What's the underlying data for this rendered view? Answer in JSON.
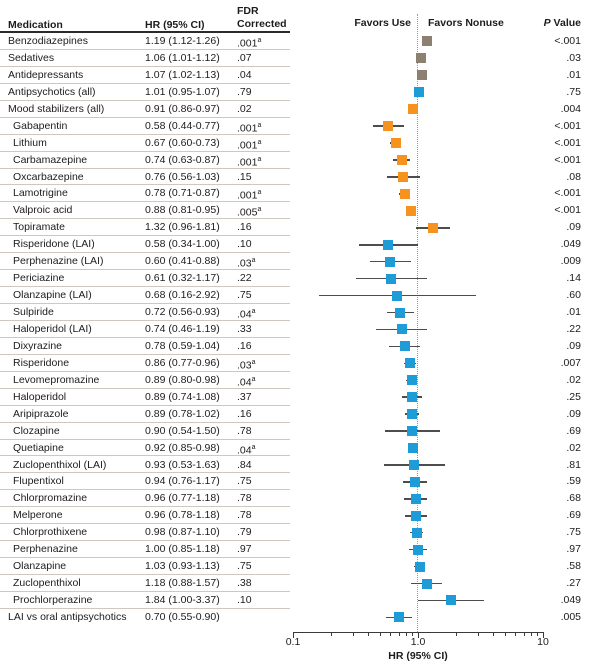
{
  "colors": {
    "brown": "#8E8070",
    "orange": "#F6921E",
    "blue": "#1E9CD8",
    "whisker": "#4D4D4D",
    "row_separator": "#CFC8C0",
    "header_rule": "#2B2B2B",
    "reference_line": "#9A9A9A"
  },
  "chart_data": {
    "type": "forest",
    "x_scale": "log",
    "xlim": [
      0.1,
      10
    ],
    "reference_line": 1.0,
    "xlabel": "HR (95% CI)",
    "favors_left": "Favors Use",
    "favors_right": "Favors Nonuse",
    "columns": {
      "medication": "Medication",
      "hr": "HR (95% CI)",
      "fdr_line1": "FDR",
      "fdr_line2": "Corrected",
      "p_italic": "P",
      "p_rest": " Value"
    },
    "x_ticks": [
      {
        "v": 0.1,
        "label": "0.1"
      },
      {
        "v": 1.0,
        "label": "1.0"
      },
      {
        "v": 10,
        "label": "10"
      }
    ],
    "x_minor_ticks": [
      0.2,
      0.3,
      0.4,
      0.5,
      0.6,
      0.7,
      0.8,
      0.9,
      2,
      3,
      4,
      5,
      6,
      7,
      8,
      9
    ],
    "rows": [
      {
        "label": "Benzodiazepines",
        "hr": 1.19,
        "lo": 1.12,
        "hi": 1.26,
        "hr_text": "1.19 (1.12-1.26)",
        "fdr": ".001",
        "fdr_sup": "a",
        "p": "<.001",
        "group": "brown",
        "indent": false
      },
      {
        "label": "Sedatives",
        "hr": 1.06,
        "lo": 1.01,
        "hi": 1.12,
        "hr_text": "1.06 (1.01-1.12)",
        "fdr": ".07",
        "fdr_sup": "",
        "p": ".03",
        "group": "brown",
        "indent": false
      },
      {
        "label": "Antidepressants",
        "hr": 1.07,
        "lo": 1.02,
        "hi": 1.13,
        "hr_text": "1.07 (1.02-1.13)",
        "fdr": ".04",
        "fdr_sup": "",
        "p": ".01",
        "group": "brown",
        "indent": false
      },
      {
        "label": "Antipsychotics (all)",
        "hr": 1.01,
        "lo": 0.95,
        "hi": 1.07,
        "hr_text": "1.01 (0.95-1.07)",
        "fdr": ".79",
        "fdr_sup": "",
        "p": ".75",
        "group": "blue",
        "indent": false
      },
      {
        "label": "Mood stabilizers (all)",
        "hr": 0.91,
        "lo": 0.86,
        "hi": 0.97,
        "hr_text": "0.91 (0.86-0.97)",
        "fdr": ".02",
        "fdr_sup": "",
        "p": ".004",
        "group": "orange",
        "indent": false
      },
      {
        "label": "Gabapentin",
        "hr": 0.58,
        "lo": 0.44,
        "hi": 0.77,
        "hr_text": "0.58 (0.44-0.77)",
        "fdr": ".001",
        "fdr_sup": "a",
        "p": "<.001",
        "group": "orange",
        "indent": true
      },
      {
        "label": "Lithium",
        "hr": 0.67,
        "lo": 0.6,
        "hi": 0.73,
        "hr_text": "0.67 (0.60-0.73)",
        "fdr": ".001",
        "fdr_sup": "a",
        "p": "<.001",
        "group": "orange",
        "indent": true
      },
      {
        "label": "Carbamazepine",
        "hr": 0.74,
        "lo": 0.63,
        "hi": 0.87,
        "hr_text": "0.74 (0.63-0.87)",
        "fdr": ".001",
        "fdr_sup": "a",
        "p": "<.001",
        "group": "orange",
        "indent": true
      },
      {
        "label": "Oxcarbazepine",
        "hr": 0.76,
        "lo": 0.56,
        "hi": 1.03,
        "hr_text": "0.76 (0.56-1.03)",
        "fdr": ".15",
        "fdr_sup": "",
        "p": ".08",
        "group": "orange",
        "indent": true
      },
      {
        "label": "Lamotrigine",
        "hr": 0.78,
        "lo": 0.71,
        "hi": 0.87,
        "hr_text": "0.78 (0.71-0.87)",
        "fdr": ".001",
        "fdr_sup": "a",
        "p": "<.001",
        "group": "orange",
        "indent": true
      },
      {
        "label": "Valproic acid",
        "hr": 0.88,
        "lo": 0.81,
        "hi": 0.95,
        "hr_text": "0.88 (0.81-0.95)",
        "fdr": ".005",
        "fdr_sup": "a",
        "p": "<.001",
        "group": "orange",
        "indent": true
      },
      {
        "label": "Topiramate",
        "hr": 1.32,
        "lo": 0.96,
        "hi": 1.81,
        "hr_text": "1.32 (0.96-1.81)",
        "fdr": ".16",
        "fdr_sup": "",
        "p": ".09",
        "group": "orange",
        "indent": true
      },
      {
        "label": "Risperidone (LAI)",
        "hr": 0.58,
        "lo": 0.34,
        "hi": 1.0,
        "hr_text": "0.58 (0.34-1.00)",
        "fdr": ".10",
        "fdr_sup": "",
        "p": ".049",
        "group": "blue",
        "indent": true
      },
      {
        "label": "Perphenazine (LAI)",
        "hr": 0.6,
        "lo": 0.41,
        "hi": 0.88,
        "hr_text": "0.60 (0.41-0.88)",
        "fdr": ".03",
        "fdr_sup": "a",
        "p": ".009",
        "group": "blue",
        "indent": true
      },
      {
        "label": "Periciazine",
        "hr": 0.61,
        "lo": 0.32,
        "hi": 1.17,
        "hr_text": "0.61 (0.32-1.17)",
        "fdr": ".22",
        "fdr_sup": "",
        "p": ".14",
        "group": "blue",
        "indent": true
      },
      {
        "label": "Olanzapine (LAI)",
        "hr": 0.68,
        "lo": 0.16,
        "hi": 2.92,
        "hr_text": "0.68 (0.16-2.92)",
        "fdr": ".75",
        "fdr_sup": "",
        "p": ".60",
        "group": "blue",
        "indent": true
      },
      {
        "label": "Sulpiride",
        "hr": 0.72,
        "lo": 0.56,
        "hi": 0.93,
        "hr_text": "0.72 (0.56-0.93)",
        "fdr": ".04",
        "fdr_sup": "a",
        "p": ".01",
        "group": "blue",
        "indent": true
      },
      {
        "label": "Haloperidol (LAI)",
        "hr": 0.74,
        "lo": 0.46,
        "hi": 1.19,
        "hr_text": "0.74 (0.46-1.19)",
        "fdr": ".33",
        "fdr_sup": "",
        "p": ".22",
        "group": "blue",
        "indent": true
      },
      {
        "label": "Dixyrazine",
        "hr": 0.78,
        "lo": 0.59,
        "hi": 1.04,
        "hr_text": "0.78 (0.59-1.04)",
        "fdr": ".16",
        "fdr_sup": "",
        "p": ".09",
        "group": "blue",
        "indent": true
      },
      {
        "label": "Risperidone",
        "hr": 0.86,
        "lo": 0.77,
        "hi": 0.96,
        "hr_text": "0.86 (0.77-0.96)",
        "fdr": ".03",
        "fdr_sup": "a",
        "p": ".007",
        "group": "blue",
        "indent": true
      },
      {
        "label": "Levomepromazine",
        "hr": 0.89,
        "lo": 0.8,
        "hi": 0.98,
        "hr_text": "0.89 (0.80-0.98)",
        "fdr": ".04",
        "fdr_sup": "a",
        "p": ".02",
        "group": "blue",
        "indent": true
      },
      {
        "label": "Haloperidol",
        "hr": 0.89,
        "lo": 0.74,
        "hi": 1.08,
        "hr_text": "0.89 (0.74-1.08)",
        "fdr": ".37",
        "fdr_sup": "",
        "p": ".25",
        "group": "blue",
        "indent": true
      },
      {
        "label": "Aripiprazole",
        "hr": 0.89,
        "lo": 0.78,
        "hi": 1.02,
        "hr_text": "0.89 (0.78-1.02)",
        "fdr": ".16",
        "fdr_sup": "",
        "p": ".09",
        "group": "blue",
        "indent": true
      },
      {
        "label": "Clozapine",
        "hr": 0.9,
        "lo": 0.54,
        "hi": 1.5,
        "hr_text": "0.90 (0.54-1.50)",
        "fdr": ".78",
        "fdr_sup": "",
        "p": ".69",
        "group": "blue",
        "indent": true
      },
      {
        "label": "Quetiapine",
        "hr": 0.92,
        "lo": 0.85,
        "hi": 0.98,
        "hr_text": "0.92 (0.85-0.98)",
        "fdr": ".04",
        "fdr_sup": "a",
        "p": ".02",
        "group": "blue",
        "indent": true
      },
      {
        "label": "Zuclopenthixol (LAI)",
        "hr": 0.93,
        "lo": 0.53,
        "hi": 1.63,
        "hr_text": "0.93 (0.53-1.63)",
        "fdr": ".84",
        "fdr_sup": "",
        "p": ".81",
        "group": "blue",
        "indent": true
      },
      {
        "label": "Flupentixol",
        "hr": 0.94,
        "lo": 0.76,
        "hi": 1.17,
        "hr_text": "0.94 (0.76-1.17)",
        "fdr": ".75",
        "fdr_sup": "",
        "p": ".59",
        "group": "blue",
        "indent": true
      },
      {
        "label": "Chlorpromazine",
        "hr": 0.96,
        "lo": 0.77,
        "hi": 1.18,
        "hr_text": "0.96 (0.77-1.18)",
        "fdr": ".78",
        "fdr_sup": "",
        "p": ".68",
        "group": "blue",
        "indent": true
      },
      {
        "label": "Melperone",
        "hr": 0.96,
        "lo": 0.78,
        "hi": 1.18,
        "hr_text": "0.96 (0.78-1.18)",
        "fdr": ".78",
        "fdr_sup": "",
        "p": ".69",
        "group": "blue",
        "indent": true
      },
      {
        "label": "Chlorprothixene",
        "hr": 0.98,
        "lo": 0.87,
        "hi": 1.1,
        "hr_text": "0.98 (0.87-1.10)",
        "fdr": ".79",
        "fdr_sup": "",
        "p": ".75",
        "group": "blue",
        "indent": true
      },
      {
        "label": "Perphenazine",
        "hr": 1.0,
        "lo": 0.85,
        "hi": 1.18,
        "hr_text": "1.00 (0.85-1.18)",
        "fdr": ".97",
        "fdr_sup": "",
        "p": ".97",
        "group": "blue",
        "indent": true
      },
      {
        "label": "Olanzapine",
        "hr": 1.03,
        "lo": 0.93,
        "hi": 1.13,
        "hr_text": "1.03 (0.93-1.13)",
        "fdr": ".75",
        "fdr_sup": "",
        "p": ".58",
        "group": "blue",
        "indent": true
      },
      {
        "label": "Zuclopenthixol",
        "hr": 1.18,
        "lo": 0.88,
        "hi": 1.57,
        "hr_text": "1.18 (0.88-1.57)",
        "fdr": ".38",
        "fdr_sup": "",
        "p": ".27",
        "group": "blue",
        "indent": true
      },
      {
        "label": "Prochlorperazine",
        "hr": 1.84,
        "lo": 1.0,
        "hi": 3.37,
        "hr_text": "1.84 (1.00-3.37)",
        "fdr": ".10",
        "fdr_sup": "",
        "p": ".049",
        "group": "blue",
        "indent": true
      },
      {
        "label": "LAI vs oral antipsychotics",
        "hr": 0.7,
        "lo": 0.55,
        "hi": 0.9,
        "hr_text": "0.70 (0.55-0.90)",
        "fdr": "",
        "fdr_sup": "",
        "p": ".005",
        "group": "blue",
        "indent": false
      }
    ]
  }
}
